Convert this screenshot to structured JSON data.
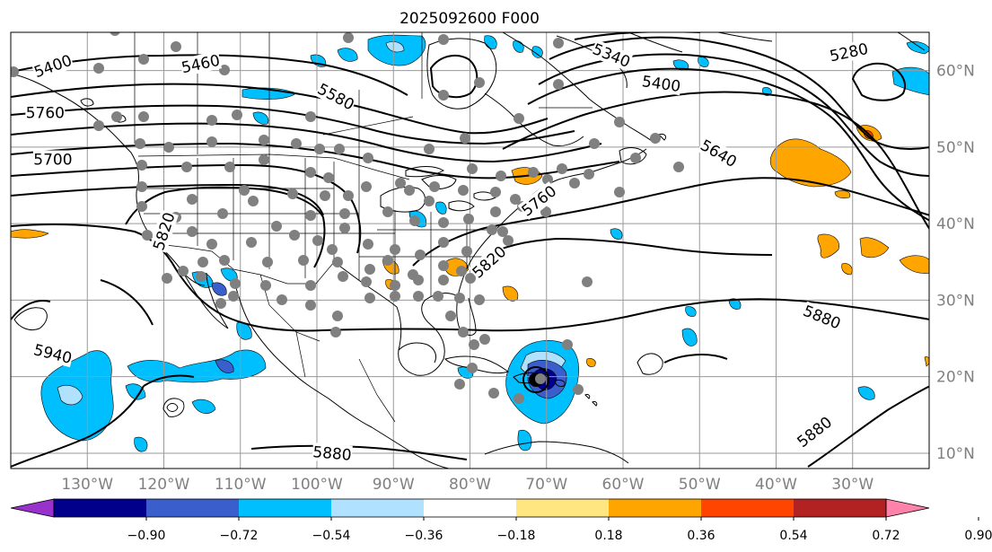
{
  "title": "2025092600 F000",
  "map": {
    "lon_min": -140,
    "lon_max": -20,
    "lat_min": 8,
    "lat_max": 65,
    "grid_lons": [
      -130,
      -120,
      -110,
      -100,
      -90,
      -80,
      -70,
      -60,
      -50,
      -40,
      -30
    ],
    "grid_lats": [
      10,
      20,
      30,
      40,
      50,
      60
    ],
    "lon_labels": [
      "130°W",
      "120°W",
      "110°W",
      "100°W",
      "90°W",
      "80°W",
      "70°W",
      "60°W",
      "50°W",
      "40°W",
      "30°W"
    ],
    "lat_labels": [
      "10°N",
      "20°N",
      "30°N",
      "40°N",
      "50°N",
      "60°N"
    ],
    "grid_color": "#999999",
    "coast_color": "#000000"
  },
  "contours": {
    "line_color": "#000000",
    "labels": [
      {
        "text": "5400",
        "lon": -134.5,
        "lat": 60.6,
        "rot": -20
      },
      {
        "text": "5460",
        "lon": -115.2,
        "lat": 60.9,
        "rot": -12
      },
      {
        "text": "5580",
        "lon": -97.5,
        "lat": 56.6,
        "rot": 28
      },
      {
        "text": "5340",
        "lon": -61.5,
        "lat": 62.0,
        "rot": 22
      },
      {
        "text": "5400",
        "lon": -55.0,
        "lat": 58.3,
        "rot": 8
      },
      {
        "text": "5280",
        "lon": -30.5,
        "lat": 62.4,
        "rot": -12
      },
      {
        "text": "5640",
        "lon": -47.5,
        "lat": 49.2,
        "rot": 30
      },
      {
        "text": "5700",
        "lon": -134.5,
        "lat": 48.4,
        "rot": 0
      },
      {
        "text": "5820",
        "lon": -120.0,
        "lat": 39.0,
        "rot": -72
      },
      {
        "text": "5820",
        "lon": -77.5,
        "lat": 35.0,
        "rot": -42
      },
      {
        "text": "5760",
        "lon": -71.0,
        "lat": 43.0,
        "rot": -38
      },
      {
        "text": "5880",
        "lon": -34.0,
        "lat": 27.8,
        "rot": 22
      },
      {
        "text": "5940",
        "lon": -134.5,
        "lat": 23.0,
        "rot": 14
      },
      {
        "text": "5880",
        "lon": -98.0,
        "lat": 10.0,
        "rot": 5
      },
      {
        "text": "5880",
        "lon": -35.0,
        "lat": 12.8,
        "rot": -38
      },
      {
        "text": "5760",
        "lon": -135.5,
        "lat": 54.5,
        "rot": 0
      }
    ]
  },
  "colorbar": {
    "colors": [
      "#9932cc",
      "#00008b",
      "#3a5fcd",
      "#00bfff",
      "#b0e2ff",
      "#ffffff",
      "#ffe680",
      "#ffa500",
      "#ff4500",
      "#b22222",
      "#ff82ab"
    ],
    "tick_labels": [
      "−0.90",
      "−0.72",
      "−0.54",
      "−0.36",
      "−0.18",
      "0.18",
      "0.36",
      "0.54",
      "0.72",
      "0.90"
    ]
  },
  "stations": {
    "marker_color": "#808080"
  }
}
